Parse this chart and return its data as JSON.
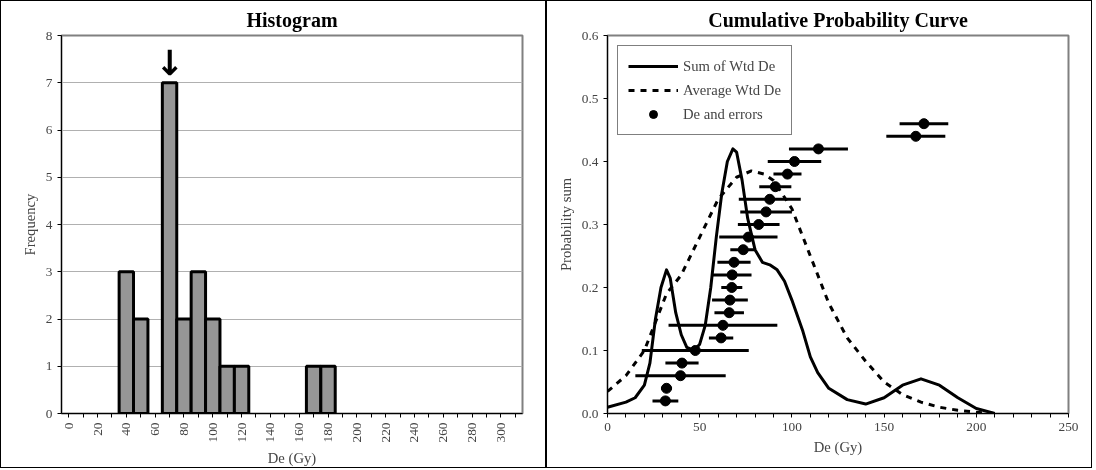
{
  "chart_data": [
    {
      "type": "histogram",
      "title": "Histogram",
      "xlabel": "De (Gy)",
      "ylabel": "Frequency",
      "color": "#969696",
      "bins": [
        35,
        45,
        55,
        65,
        75,
        85,
        95,
        105,
        115,
        125,
        135,
        145,
        155,
        165,
        175,
        185
      ],
      "values": [
        3,
        2,
        0,
        7,
        2,
        3,
        2,
        1,
        1,
        0,
        0,
        0,
        0,
        1,
        1
      ],
      "xlim": [
        -5,
        315
      ],
      "xticks": [
        0,
        {
          "value": 10,
          "label": null
        },
        20,
        {
          "value": 30,
          "label": null
        },
        40,
        {
          "value": 50,
          "label": null
        },
        60,
        {
          "value": 70,
          "label": null
        },
        80,
        {
          "value": 90,
          "label": null
        },
        100,
        {
          "value": 110,
          "label": null
        },
        120,
        {
          "value": 130,
          "label": null
        },
        140,
        {
          "value": 150,
          "label": null
        },
        160,
        {
          "value": 170,
          "label": null
        },
        180,
        {
          "value": 190,
          "label": null
        },
        200,
        {
          "value": 210,
          "label": null
        },
        220,
        {
          "value": 230,
          "label": null
        },
        240,
        {
          "value": 250,
          "label": null
        },
        260,
        {
          "value": 270,
          "label": null
        },
        280,
        {
          "value": 290,
          "label": null
        },
        300,
        {
          "value": 310,
          "label": null
        }
      ],
      "ylim": [
        0,
        8
      ],
      "yticks": [
        0,
        1,
        2,
        3,
        4,
        5,
        6,
        7,
        8
      ],
      "grid": "y",
      "annotations": [
        {
          "text": "↓",
          "x": 70,
          "y": 7
        }
      ]
    },
    {
      "type": "line",
      "title": "Cumulative Probability Curve",
      "xlabel": "De (Gy)",
      "ylabel": "Probability sum",
      "legend": "top left",
      "grid": false,
      "xlim": [
        0,
        250
      ],
      "xticks": [
        0,
        {
          "value": 10,
          "label": null
        },
        {
          "value": 20,
          "label": null
        },
        {
          "value": 30,
          "label": null
        },
        {
          "value": 40,
          "label": null
        },
        50,
        {
          "value": 60,
          "label": null
        },
        {
          "value": 70,
          "label": null
        },
        {
          "value": 80,
          "label": null
        },
        {
          "value": 90,
          "label": null
        },
        100,
        {
          "value": 110,
          "label": null
        },
        {
          "value": 120,
          "label": null
        },
        {
          "value": 130,
          "label": null
        },
        {
          "value": 140,
          "label": null
        },
        150,
        {
          "value": 160,
          "label": null
        },
        {
          "value": 170,
          "label": null
        },
        {
          "value": 180,
          "label": null
        },
        {
          "value": 190,
          "label": null
        },
        200,
        {
          "value": 210,
          "label": null
        },
        {
          "value": 220,
          "label": null
        },
        {
          "value": 230,
          "label": null
        },
        {
          "value": 240,
          "label": null
        },
        250
      ],
      "ylim": [
        0,
        0.6
      ],
      "yticks": [
        {
          "value": 0,
          "label": "0.0"
        },
        0.1,
        0.2,
        0.3,
        0.4,
        0.5,
        0.6
      ],
      "series": [
        {
          "name": "Sum of Wtd De",
          "type": "line",
          "line_style": "solid",
          "color": "#000000",
          "x": [
            0,
            10,
            15,
            20,
            23,
            26,
            29,
            32,
            34,
            37,
            40,
            43,
            47,
            50,
            53,
            56,
            59,
            62,
            65,
            68,
            70,
            73,
            76,
            80,
            84,
            88,
            92,
            96,
            100,
            106,
            110,
            114,
            120,
            130,
            140,
            150,
            160,
            170,
            180,
            190,
            200,
            210
          ],
          "values": [
            0.01,
            0.018,
            0.025,
            0.045,
            0.08,
            0.15,
            0.2,
            0.228,
            0.215,
            0.16,
            0.125,
            0.105,
            0.1,
            0.11,
            0.14,
            0.2,
            0.28,
            0.35,
            0.4,
            0.42,
            0.415,
            0.37,
            0.31,
            0.26,
            0.24,
            0.236,
            0.228,
            0.21,
            0.18,
            0.13,
            0.09,
            0.065,
            0.04,
            0.022,
            0.015,
            0.025,
            0.045,
            0.055,
            0.045,
            0.025,
            0.008,
            0.0
          ]
        },
        {
          "name": "Average Wtd De",
          "type": "line",
          "line_style": "dashed",
          "color": "#000000",
          "x": [
            0,
            10,
            20,
            32,
            40,
            50,
            60,
            70,
            78,
            85,
            90,
            100,
            110,
            120,
            130,
            140,
            150,
            160,
            170,
            180,
            190,
            200,
            210
          ],
          "values": [
            0.035,
            0.06,
            0.1,
            0.19,
            0.22,
            0.28,
            0.34,
            0.375,
            0.385,
            0.38,
            0.37,
            0.325,
            0.25,
            0.175,
            0.12,
            0.083,
            0.05,
            0.03,
            0.018,
            0.01,
            0.005,
            0.002,
            0.0
          ]
        },
        {
          "name": "De and errors",
          "type": "scatter",
          "marker": "circle",
          "color": "#000000",
          "x": [
            31.4,
            32,
            39.6,
            40.4,
            47.6,
            61.6,
            62.6,
            66,
            66.4,
            67.4,
            67.6,
            68.6,
            73.6,
            76.4,
            82,
            86,
            88,
            91,
            97.6,
            101.4,
            114.4,
            167.2,
            171.6
          ],
          "values": [
            0.02,
            0.04,
            0.06,
            0.08,
            0.1,
            0.12,
            0.14,
            0.16,
            0.18,
            0.2,
            0.22,
            0.24,
            0.26,
            0.28,
            0.3,
            0.32,
            0.34,
            0.36,
            0.38,
            0.4,
            0.42,
            0.44,
            0.46
          ],
          "xerrors": [
            7,
            3,
            24.5,
            9,
            29,
            6.6,
            29.5,
            8,
            9.7,
            5.7,
            10.5,
            9,
            7,
            15.8,
            11.3,
            14,
            16.8,
            8.7,
            7.6,
            14.5,
            16,
            16,
            13.2
          ]
        }
      ]
    }
  ]
}
